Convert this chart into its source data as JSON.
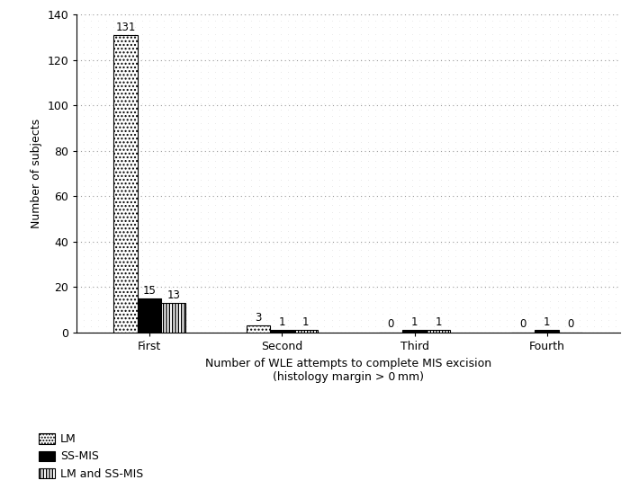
{
  "categories": [
    "First",
    "Second",
    "Third",
    "Fourth"
  ],
  "lm_values": [
    131,
    3,
    0,
    0
  ],
  "ss_mis_values": [
    15,
    1,
    1,
    1
  ],
  "lm_ss_mis_values": [
    13,
    1,
    1,
    0
  ],
  "xlabel_line1": "Number of WLE attempts to complete MIS excision",
  "xlabel_line2": "(histology margin > 0 mm)",
  "ylabel": "Number of subjects",
  "ylim": [
    0,
    140
  ],
  "yticks": [
    0,
    20,
    40,
    60,
    80,
    100,
    120,
    140
  ],
  "bar_width": 0.18,
  "lm_color": "white",
  "ss_mis_color": "black",
  "lm_ss_mis_color": "white",
  "background_color": "white",
  "legend_lm": "LM",
  "legend_ss_mis": "SS-MIS",
  "legend_lm_ss_mis": "LM and SS-MIS",
  "axis_fontsize": 9,
  "tick_fontsize": 9,
  "label_fontsize": 8.5,
  "dot_color": "#aaaaaa",
  "dot_spacing_x": 0.055,
  "dot_spacing_y": 2.8,
  "grid_color": "#888888",
  "grid_linestyle": "-.",
  "xlim_left": -0.55,
  "xlim_right": 3.55
}
